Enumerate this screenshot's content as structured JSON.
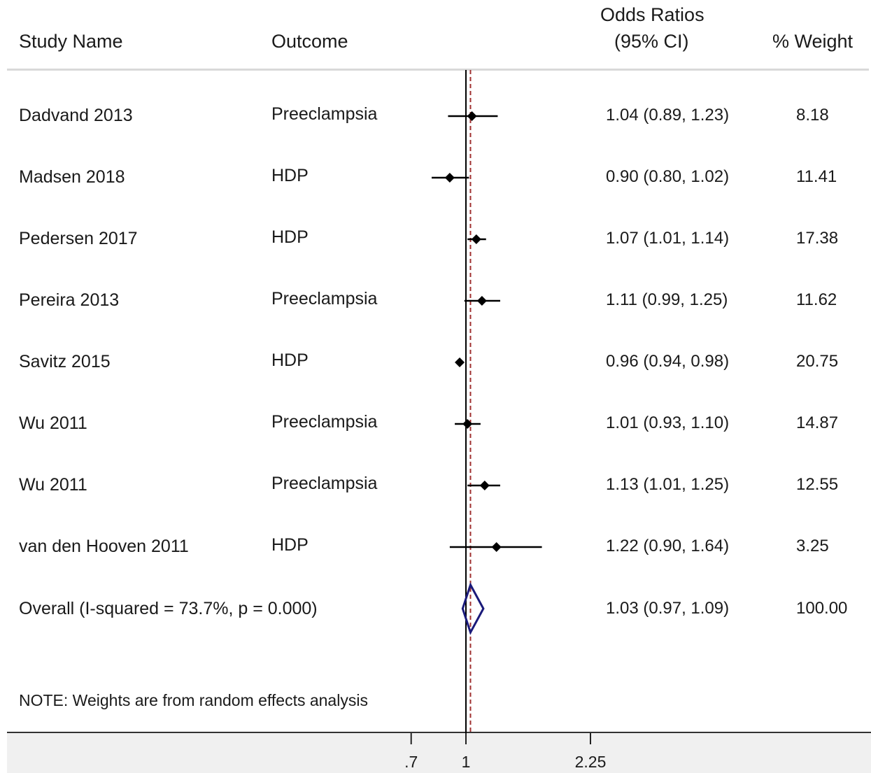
{
  "headers": {
    "study": "Study Name",
    "outcome": "Outcome",
    "or_line1": "Odds  Ratios",
    "or_line2": "(95%  CI)",
    "weight": "% Weight"
  },
  "note": "NOTE: Weights are from random effects analysis",
  "colors": {
    "point": "#000000",
    "ci": "#000000",
    "null_line": "#000000",
    "overall_line": "#a03030",
    "diamond": "#1a1a7a"
  },
  "chart_data": {
    "type": "forest",
    "scale": "log",
    "null_value": 1,
    "x_ticks": [
      0.7,
      1,
      2.25
    ],
    "x_tick_labels": [
      ".7",
      "1",
      "2.25"
    ],
    "studies": [
      {
        "name": "Dadvand 2013",
        "outcome": "Preeclampsia",
        "or": 1.04,
        "lo": 0.89,
        "hi": 1.23,
        "or_text": "1.04 (0.89, 1.23)",
        "weight": "8.18"
      },
      {
        "name": "Madsen 2018",
        "outcome": "HDP",
        "or": 0.9,
        "lo": 0.8,
        "hi": 1.02,
        "or_text": "0.90 (0.80, 1.02)",
        "weight": "11.41"
      },
      {
        "name": "Pedersen 2017",
        "outcome": "HDP",
        "or": 1.07,
        "lo": 1.01,
        "hi": 1.14,
        "or_text": "1.07 (1.01, 1.14)",
        "weight": "17.38"
      },
      {
        "name": "Pereira  2013",
        "outcome": "Preeclampsia",
        "or": 1.11,
        "lo": 0.99,
        "hi": 1.25,
        "or_text": "1.11 (0.99, 1.25)",
        "weight": "11.62"
      },
      {
        "name": "Savitz 2015",
        "outcome": "HDP",
        "or": 0.96,
        "lo": 0.94,
        "hi": 0.98,
        "or_text": "0.96 (0.94, 0.98)",
        "weight": "20.75"
      },
      {
        "name": "Wu  2011",
        "outcome": "Preeclampsia",
        "or": 1.01,
        "lo": 0.93,
        "hi": 1.1,
        "or_text": "1.01 (0.93, 1.10)",
        "weight": "14.87"
      },
      {
        "name": "Wu  2011",
        "outcome": "Preeclampsia",
        "or": 1.13,
        "lo": 1.01,
        "hi": 1.25,
        "or_text": "1.13 (1.01, 1.25)",
        "weight": "12.55"
      },
      {
        "name": "van den Hooven  2011",
        "outcome": "HDP",
        "or": 1.22,
        "lo": 0.9,
        "hi": 1.64,
        "or_text": "1.22 (0.90, 1.64)",
        "weight": "3.25"
      }
    ],
    "overall": {
      "label": "Overall  (I-squared = 73.7%, p = 0.000)",
      "or": 1.03,
      "lo": 0.97,
      "hi": 1.09,
      "or_text": "1.03 (0.97, 1.09)",
      "weight": "100.00"
    }
  }
}
